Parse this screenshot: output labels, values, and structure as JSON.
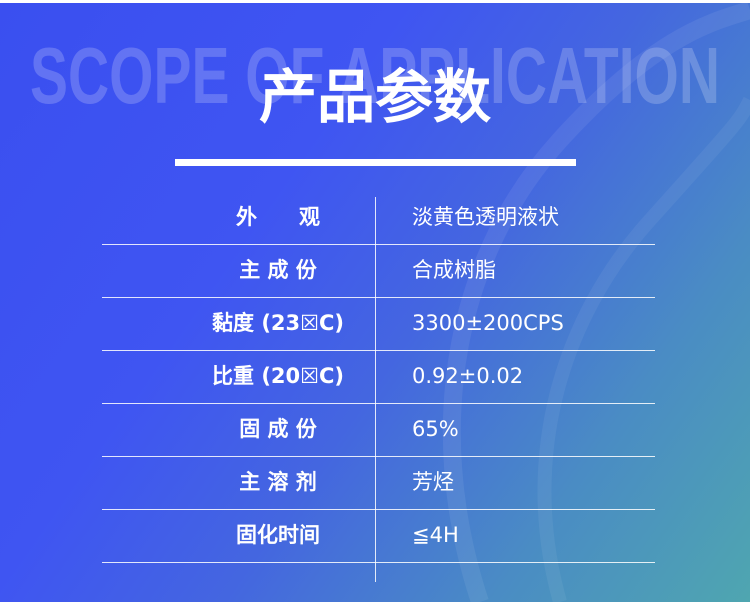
{
  "header": {
    "background_word": "SCOPE OF APPLICATION",
    "title": "产品参数"
  },
  "colors": {
    "bg_start": "#3a4ff0",
    "bg_end": "#4fa6b0",
    "text": "#ffffff"
  },
  "table": {
    "rows": [
      {
        "label": "外　　观",
        "value": "淡黄色透明液状"
      },
      {
        "label": "主 成 份",
        "value": "合成树脂"
      },
      {
        "label": "黏度 (23☒C)",
        "value": "3300±200CPS"
      },
      {
        "label": "比重 (20☒C)",
        "value": "0.92±0.02"
      },
      {
        "label": "固 成 份",
        "value": "65%"
      },
      {
        "label": "主 溶 剂",
        "value": "芳烃"
      },
      {
        "label": "固化时间",
        "value": "≦4H"
      }
    ]
  }
}
